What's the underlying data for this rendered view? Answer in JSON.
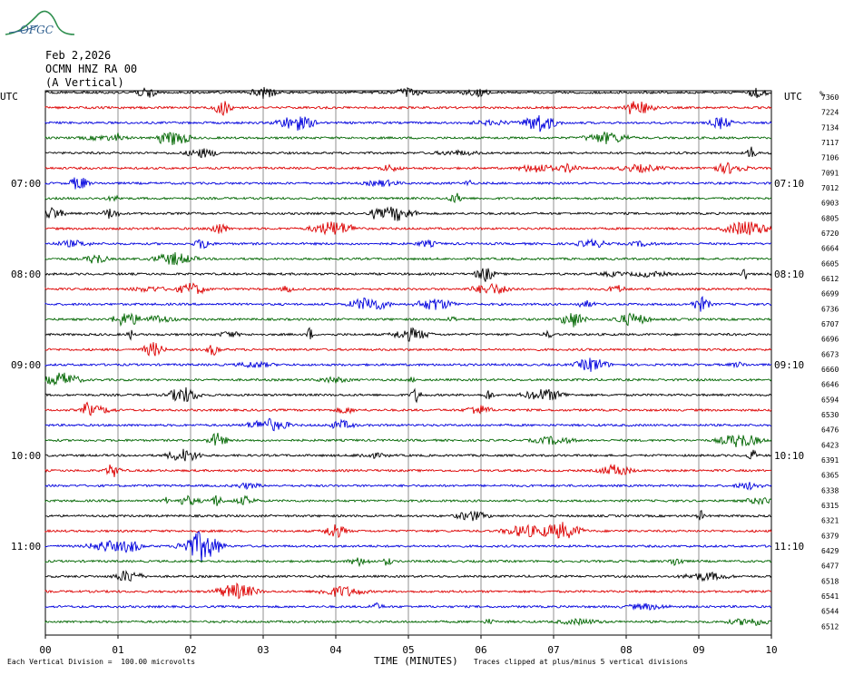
{
  "logo": {
    "text": "OFGC",
    "color": "#2f8f4f"
  },
  "header": {
    "date": "Feb 2,2026",
    "station": "OCMN HNZ RA 00",
    "component": "(A Vertical)"
  },
  "footer": {
    "scale_note": "Each Vertical Division =  100.00 microvolts",
    "clip_note": "Traces clipped at plus/minus 5 vertical divisions"
  },
  "chart_data": {
    "type": "line",
    "title": "",
    "xlabel": "TIME (MINUTES)",
    "ylabel_left": "UTC",
    "ylabel_right": "UTC",
    "right_column_header": "%",
    "xlim": [
      0,
      10
    ],
    "x_ticks": [
      "00",
      "01",
      "02",
      "03",
      "04",
      "05",
      "06",
      "07",
      "08",
      "09",
      "10"
    ],
    "grid": "vertical",
    "trace_colors": [
      "#000000",
      "#dd0000",
      "#0000dd",
      "#006600"
    ],
    "left_time_labels": [
      {
        "row": 6,
        "label": "07:00"
      },
      {
        "row": 12,
        "label": "08:00"
      },
      {
        "row": 18,
        "label": "09:00"
      },
      {
        "row": 24,
        "label": "10:00"
      },
      {
        "row": 30,
        "label": "11:00"
      }
    ],
    "right_time_labels": [
      {
        "row": 6,
        "label": "07:10"
      },
      {
        "row": 12,
        "label": "08:10"
      },
      {
        "row": 18,
        "label": "09:10"
      },
      {
        "row": 24,
        "label": "10:10"
      },
      {
        "row": 30,
        "label": "11:10"
      }
    ],
    "trace_values": [
      7360,
      7224,
      7134,
      7117,
      7106,
      7091,
      7012,
      6903,
      6805,
      6720,
      6664,
      6605,
      6612,
      6699,
      6736,
      6707,
      6696,
      6673,
      6660,
      6646,
      6594,
      6530,
      6476,
      6423,
      6391,
      6365,
      6338,
      6315,
      6321,
      6379,
      6429,
      6477,
      6518,
      6541,
      6544,
      6512
    ]
  }
}
